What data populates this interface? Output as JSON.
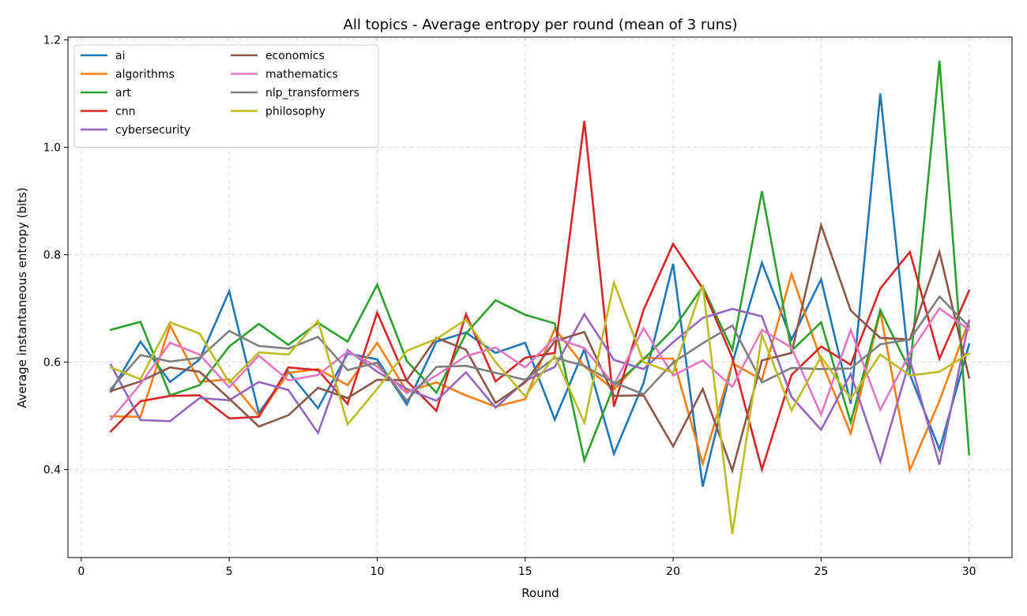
{
  "chart_data": {
    "type": "line",
    "title": "All topics - Average entropy per round (mean of 3 runs)",
    "xlabel": "Round",
    "ylabel": "Average instantaneous entropy (bits)",
    "xlim": [
      -0.45,
      31.45
    ],
    "ylim": [
      0.236,
      1.205
    ],
    "xticks": [
      0,
      5,
      10,
      15,
      20,
      25,
      30
    ],
    "yticks": [
      0.4,
      0.6,
      0.8,
      1.0,
      1.2
    ],
    "ytick_labels": [
      "0.4",
      "0.6",
      "0.8",
      "1.0",
      "1.2"
    ],
    "grid": true,
    "legend_position": "upper-left",
    "legend_columns": 2,
    "x": [
      1,
      2,
      3,
      4,
      5,
      6,
      7,
      8,
      9,
      10,
      11,
      12,
      13,
      14,
      15,
      16,
      17,
      18,
      19,
      20,
      21,
      22,
      23,
      24,
      25,
      26,
      27,
      28,
      29,
      30
    ],
    "series": [
      {
        "name": "ai",
        "color": "#1f77b4",
        "values": [
          0.545,
          0.638,
          0.563,
          0.605,
          0.732,
          0.505,
          0.582,
          0.514,
          0.616,
          0.605,
          0.521,
          0.638,
          0.655,
          0.617,
          0.636,
          0.493,
          0.624,
          0.429,
          0.561,
          0.783,
          0.368,
          0.598,
          0.785,
          0.642,
          0.754,
          0.523,
          1.1,
          0.577,
          0.437,
          0.633
        ]
      },
      {
        "name": "algorithms",
        "color": "#ff7f0e",
        "values": [
          0.499,
          0.498,
          0.668,
          0.563,
          0.568,
          0.5,
          0.58,
          0.587,
          0.557,
          0.636,
          0.545,
          0.562,
          0.538,
          0.517,
          0.531,
          0.662,
          0.592,
          0.549,
          0.608,
          0.606,
          0.411,
          0.598,
          0.567,
          0.764,
          0.603,
          0.467,
          0.694,
          0.399,
          0.528,
          0.677
        ]
      },
      {
        "name": "art",
        "color": "#2ca02c",
        "values": [
          0.66,
          0.675,
          0.538,
          0.557,
          0.629,
          0.671,
          0.632,
          0.673,
          0.638,
          0.744,
          0.602,
          0.543,
          0.653,
          0.715,
          0.688,
          0.672,
          0.417,
          0.556,
          0.605,
          0.661,
          0.74,
          0.623,
          0.918,
          0.621,
          0.674,
          0.488,
          0.697,
          0.584,
          1.161,
          0.428
        ]
      },
      {
        "name": "cnn",
        "color": "#d62728",
        "values": [
          0.471,
          0.527,
          0.537,
          0.538,
          0.495,
          0.498,
          0.59,
          0.585,
          0.522,
          0.692,
          0.565,
          0.509,
          0.689,
          0.564,
          0.608,
          0.617,
          1.049,
          0.517,
          0.697,
          0.82,
          0.737,
          0.608,
          0.4,
          0.576,
          0.629,
          0.595,
          0.737,
          0.805,
          0.606,
          0.733
        ]
      },
      {
        "name": "cybersecurity",
        "color": "#9467bd",
        "values": [
          0.595,
          0.492,
          0.49,
          0.533,
          0.529,
          0.563,
          0.548,
          0.468,
          0.622,
          0.582,
          0.55,
          0.528,
          0.581,
          0.515,
          0.565,
          0.591,
          0.689,
          0.604,
          0.587,
          0.637,
          0.682,
          0.699,
          0.685,
          0.535,
          0.474,
          0.578,
          0.415,
          0.604,
          0.409,
          0.677
        ]
      },
      {
        "name": "economics",
        "color": "#8c564b",
        "values": [
          0.546,
          0.564,
          0.59,
          0.582,
          0.532,
          0.48,
          0.501,
          0.552,
          0.533,
          0.567,
          0.566,
          0.645,
          0.623,
          0.524,
          0.562,
          0.639,
          0.656,
          0.537,
          0.538,
          0.443,
          0.55,
          0.398,
          0.603,
          0.617,
          0.855,
          0.696,
          0.645,
          0.642,
          0.805,
          0.571
        ]
      },
      {
        "name": "mathematics",
        "color": "#e377c2",
        "values": [
          0.493,
          0.559,
          0.636,
          0.614,
          0.553,
          0.612,
          0.566,
          0.576,
          0.619,
          0.592,
          0.542,
          0.575,
          0.611,
          0.627,
          0.59,
          0.645,
          0.626,
          0.558,
          0.663,
          0.575,
          0.603,
          0.554,
          0.66,
          0.627,
          0.502,
          0.66,
          0.511,
          0.617,
          0.7,
          0.66
        ]
      },
      {
        "name": "nlp_transformers",
        "color": "#7f7f7f",
        "values": [
          0.55,
          0.613,
          0.601,
          0.608,
          0.658,
          0.63,
          0.625,
          0.647,
          0.585,
          0.599,
          0.528,
          0.591,
          0.593,
          0.58,
          0.567,
          0.608,
          0.593,
          0.562,
          0.54,
          0.599,
          0.635,
          0.668,
          0.562,
          0.589,
          0.587,
          0.588,
          0.633,
          0.642,
          0.722,
          0.666
        ]
      },
      {
        "name": "philosophy",
        "color": "#bcbd22",
        "values": [
          0.59,
          0.568,
          0.674,
          0.653,
          0.562,
          0.618,
          0.614,
          0.677,
          0.484,
          0.55,
          0.621,
          0.643,
          0.679,
          0.6,
          0.536,
          0.612,
          0.487,
          0.748,
          0.6,
          0.58,
          0.744,
          0.28,
          0.651,
          0.51,
          0.61,
          0.532,
          0.614,
          0.575,
          0.582,
          0.616
        ]
      }
    ]
  }
}
